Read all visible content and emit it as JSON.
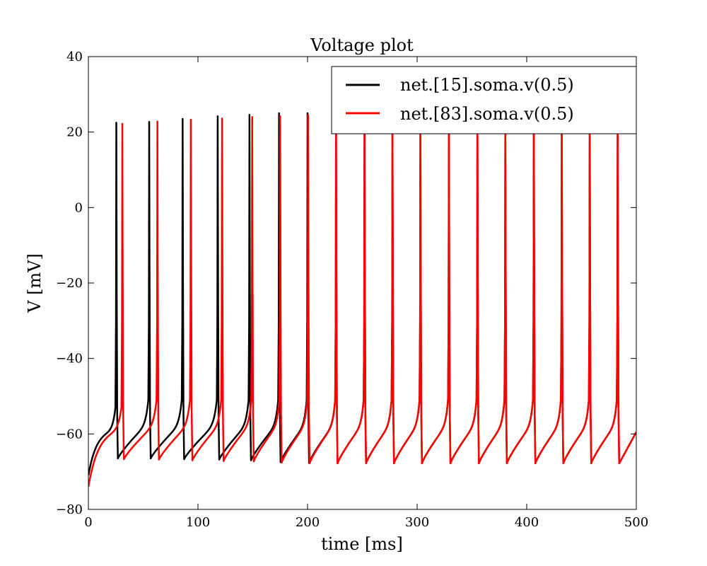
{
  "chart_data": {
    "type": "line",
    "title": "Voltage plot",
    "xlabel": "time [ms]",
    "ylabel": "V [mV]",
    "xlim": [
      0,
      500
    ],
    "ylim": [
      -80,
      40
    ],
    "x_ticks": [
      0,
      100,
      200,
      300,
      400,
      500
    ],
    "y_ticks": [
      -80,
      -60,
      -40,
      -20,
      0,
      20,
      40
    ],
    "x_tick_labels": [
      "0",
      "100",
      "200",
      "300",
      "400",
      "500"
    ],
    "y_tick_labels": [
      "−80",
      "−60",
      "−40",
      "−20",
      "0",
      "20",
      "40"
    ],
    "grid": false,
    "legend_position": "top-right",
    "series": [
      {
        "name": "net.[15].soma.v(0.5)",
        "color": "#000000",
        "spike_times": [
          25.5,
          55.5,
          86,
          118,
          147,
          174,
          200,
          226,
          252,
          277.5,
          303,
          329,
          355,
          380.5,
          406.5,
          432,
          457.5,
          483
        ],
        "spike_peaks": [
          22.5,
          22.7,
          23.5,
          24.2,
          24.6,
          25,
          25,
          25,
          25,
          25,
          25,
          25,
          25,
          25,
          25,
          25,
          25,
          25
        ],
        "trough_voltages": [
          -66.5,
          -66.5,
          -66.7,
          -66.8,
          -67,
          -67.5,
          -67.7,
          -67.8,
          -67.8,
          -67.8,
          -67.8,
          -67.8,
          -67.8,
          -67.8,
          -67.8,
          -67.8,
          -67.8,
          -67.8
        ],
        "initial_voltage": -71,
        "final_voltage": -59.5
      },
      {
        "name": "net.[83].soma.v(0.5)",
        "color": "#ff0000",
        "spike_times": [
          31,
          63,
          93.5,
          122,
          149.5,
          175,
          200.5,
          226,
          252,
          277.5,
          303,
          329,
          355,
          380.5,
          406.5,
          432,
          457.5,
          483
        ],
        "spike_peaks": [
          22.2,
          22.8,
          23.3,
          23.6,
          24,
          24.2,
          24.5,
          25,
          25,
          25,
          25,
          25,
          25,
          25,
          25,
          25,
          25,
          25
        ],
        "trough_voltages": [
          -66.7,
          -66.8,
          -67,
          -67.2,
          -67.3,
          -67.6,
          -67.8,
          -67.8,
          -67.8,
          -67.8,
          -67.8,
          -67.8,
          -67.8,
          -67.8,
          -67.8,
          -67.8,
          -67.8,
          -67.8
        ],
        "initial_voltage": -74,
        "final_voltage": -59.5
      }
    ]
  }
}
